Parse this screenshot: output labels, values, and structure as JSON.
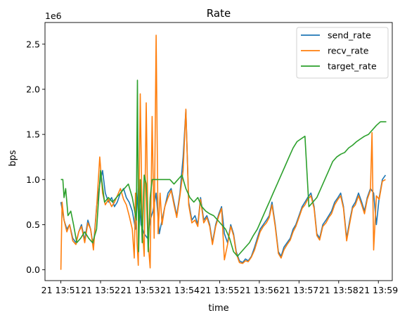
{
  "chart_data": {
    "type": "line",
    "title": "Rate",
    "xlabel": "time",
    "ylabel": "bps",
    "y_offset_text": "1e6",
    "x_range": [
      -0.4,
      8.35
    ],
    "ylim": [
      -0.12,
      2.74
    ],
    "y_ticks": [
      0.0,
      0.5,
      1.0,
      1.5,
      2.0,
      2.5
    ],
    "y_tick_labels": [
      "0.0",
      "0.5",
      "1.0",
      "1.5",
      "2.0",
      "2.5"
    ],
    "x_ticks": [
      0,
      1,
      2,
      3,
      4,
      5,
      6,
      7,
      8
    ],
    "x_tick_labels": [
      "21 13:51",
      "21 13:52",
      "21 13:53",
      "21 13:54",
      "21 13:55",
      "21 13:56",
      "21 13:57",
      "21 13:58",
      "21 13:59"
    ],
    "legend_position": "top-right",
    "grid": false,
    "series": [
      {
        "name": "send_rate",
        "color": "#1f77b4",
        "x": [
          0.0,
          0.08,
          0.15,
          0.22,
          0.3,
          0.38,
          0.45,
          0.52,
          0.6,
          0.68,
          0.75,
          0.82,
          0.9,
          0.98,
          1.05,
          1.12,
          1.2,
          1.28,
          1.35,
          1.42,
          1.5,
          1.58,
          1.65,
          1.72,
          1.8,
          1.88,
          1.95,
          2.02,
          2.1,
          2.18,
          2.25,
          2.32,
          2.4,
          2.48,
          2.55,
          2.62,
          2.7,
          2.78,
          2.85,
          2.92,
          3.0,
          3.08,
          3.15,
          3.22,
          3.3,
          3.38,
          3.45,
          3.52,
          3.6,
          3.68,
          3.75,
          3.82,
          3.9,
          3.98,
          4.05,
          4.12,
          4.2,
          4.28,
          4.35,
          4.42,
          4.5,
          4.58,
          4.65,
          4.72,
          4.8,
          4.88,
          4.95,
          5.02,
          5.1,
          5.18,
          5.25,
          5.32,
          5.4,
          5.48,
          5.55,
          5.62,
          5.7,
          5.78,
          5.85,
          5.92,
          6.0,
          6.08,
          6.15,
          6.22,
          6.3,
          6.38,
          6.45,
          6.52,
          6.6,
          6.68,
          6.75,
          6.82,
          6.9,
          6.98,
          7.05,
          7.12,
          7.2,
          7.28,
          7.35,
          7.42,
          7.5,
          7.58,
          7.65,
          7.72,
          7.8,
          7.88,
          7.95,
          8.02,
          8.1,
          8.18
        ],
        "values": [
          0.75,
          0.55,
          0.45,
          0.5,
          0.35,
          0.3,
          0.42,
          0.5,
          0.33,
          0.55,
          0.45,
          0.25,
          0.7,
          0.95,
          1.1,
          0.85,
          0.75,
          0.8,
          0.7,
          0.75,
          0.85,
          0.9,
          0.8,
          0.75,
          0.65,
          0.45,
          0.9,
          0.5,
          0.4,
          0.35,
          0.55,
          0.65,
          0.85,
          0.4,
          0.55,
          0.7,
          0.85,
          0.9,
          0.75,
          0.6,
          0.85,
          1.25,
          1.77,
          0.75,
          0.55,
          0.6,
          0.5,
          0.8,
          0.55,
          0.6,
          0.5,
          0.3,
          0.5,
          0.62,
          0.7,
          0.4,
          0.3,
          0.5,
          0.4,
          0.2,
          0.1,
          0.08,
          0.12,
          0.1,
          0.15,
          0.25,
          0.35,
          0.45,
          0.5,
          0.55,
          0.6,
          0.75,
          0.5,
          0.2,
          0.15,
          0.25,
          0.3,
          0.35,
          0.45,
          0.5,
          0.6,
          0.7,
          0.75,
          0.8,
          0.85,
          0.7,
          0.4,
          0.35,
          0.5,
          0.55,
          0.6,
          0.65,
          0.75,
          0.8,
          0.85,
          0.7,
          0.35,
          0.55,
          0.7,
          0.75,
          0.85,
          0.75,
          0.65,
          0.8,
          0.9,
          0.85,
          0.5,
          0.8,
          1.0,
          1.05
        ]
      },
      {
        "name": "recv_rate",
        "color": "#ff7f0e",
        "x": [
          0.0,
          0.03,
          0.08,
          0.15,
          0.22,
          0.3,
          0.38,
          0.45,
          0.52,
          0.6,
          0.68,
          0.75,
          0.82,
          0.9,
          0.98,
          1.05,
          1.12,
          1.2,
          1.28,
          1.35,
          1.42,
          1.5,
          1.58,
          1.65,
          1.72,
          1.8,
          1.85,
          1.88,
          1.92,
          1.95,
          2.0,
          2.05,
          2.1,
          2.15,
          2.2,
          2.25,
          2.3,
          2.35,
          2.4,
          2.45,
          2.5,
          2.55,
          2.62,
          2.7,
          2.78,
          2.85,
          2.92,
          3.0,
          3.08,
          3.15,
          3.22,
          3.3,
          3.38,
          3.45,
          3.52,
          3.6,
          3.68,
          3.75,
          3.82,
          3.9,
          3.98,
          4.05,
          4.12,
          4.2,
          4.28,
          4.35,
          4.42,
          4.5,
          4.58,
          4.65,
          4.72,
          4.8,
          4.88,
          4.95,
          5.02,
          5.1,
          5.18,
          5.25,
          5.32,
          5.4,
          5.48,
          5.55,
          5.62,
          5.7,
          5.78,
          5.85,
          5.92,
          6.0,
          6.08,
          6.15,
          6.22,
          6.3,
          6.38,
          6.45,
          6.52,
          6.6,
          6.68,
          6.75,
          6.82,
          6.9,
          6.98,
          7.05,
          7.12,
          7.2,
          7.28,
          7.35,
          7.42,
          7.5,
          7.58,
          7.65,
          7.72,
          7.8,
          7.84,
          7.88,
          7.95,
          8.02,
          8.1,
          8.18
        ],
        "values": [
          0.0,
          0.75,
          0.55,
          0.42,
          0.5,
          0.32,
          0.28,
          0.42,
          0.48,
          0.3,
          0.52,
          0.45,
          0.22,
          0.68,
          1.25,
          0.85,
          0.72,
          0.78,
          0.7,
          0.75,
          0.82,
          0.9,
          0.78,
          0.72,
          0.6,
          0.45,
          0.13,
          0.85,
          0.3,
          0.05,
          1.95,
          0.5,
          0.15,
          1.85,
          0.3,
          0.02,
          1.7,
          0.35,
          2.6,
          0.4,
          0.85,
          0.5,
          0.7,
          0.8,
          0.88,
          0.72,
          0.58,
          0.82,
          1.1,
          1.78,
          0.72,
          0.52,
          0.55,
          0.48,
          0.78,
          0.52,
          0.58,
          0.48,
          0.28,
          0.48,
          0.6,
          0.68,
          0.11,
          0.28,
          0.48,
          0.38,
          0.18,
          0.08,
          0.07,
          0.1,
          0.09,
          0.14,
          0.22,
          0.32,
          0.42,
          0.48,
          0.52,
          0.58,
          0.72,
          0.48,
          0.18,
          0.13,
          0.22,
          0.28,
          0.33,
          0.42,
          0.48,
          0.58,
          0.68,
          0.72,
          0.78,
          0.82,
          0.68,
          0.38,
          0.33,
          0.48,
          0.52,
          0.58,
          0.62,
          0.72,
          0.78,
          0.82,
          0.68,
          0.32,
          0.52,
          0.68,
          0.72,
          0.82,
          0.72,
          0.62,
          0.78,
          0.88,
          1.52,
          0.22,
          0.82,
          0.78,
          0.98,
          1.0
        ]
      },
      {
        "name": "target_rate",
        "color": "#2ca02c",
        "x": [
          0.0,
          0.05,
          0.08,
          0.12,
          0.18,
          0.25,
          0.32,
          0.4,
          0.5,
          0.6,
          0.7,
          0.8,
          0.9,
          1.0,
          1.1,
          1.2,
          1.3,
          1.4,
          1.5,
          1.6,
          1.7,
          1.8,
          1.9,
          1.93,
          1.96,
          2.0,
          2.05,
          2.1,
          2.15,
          2.2,
          2.25,
          2.3,
          2.35,
          2.45,
          2.55,
          2.65,
          2.75,
          2.85,
          2.95,
          3.05,
          3.15,
          3.25,
          3.35,
          3.45,
          3.55,
          3.65,
          3.75,
          3.85,
          3.95,
          4.05,
          4.15,
          4.25,
          4.35,
          4.45,
          4.55,
          4.65,
          4.75,
          4.85,
          4.95,
          5.05,
          5.15,
          5.25,
          5.35,
          5.45,
          5.55,
          5.65,
          5.75,
          5.85,
          5.95,
          6.05,
          6.15,
          6.25,
          6.35,
          6.45,
          6.55,
          6.65,
          6.75,
          6.85,
          6.95,
          7.05,
          7.15,
          7.25,
          7.35,
          7.45,
          7.55,
          7.65,
          7.75,
          7.85,
          7.95,
          8.05,
          8.15,
          8.2
        ],
        "values": [
          1.0,
          1.0,
          0.8,
          0.9,
          0.6,
          0.65,
          0.5,
          0.3,
          0.35,
          0.42,
          0.35,
          0.3,
          0.45,
          1.1,
          0.75,
          0.8,
          0.75,
          0.8,
          0.85,
          0.9,
          0.95,
          0.8,
          0.55,
          2.1,
          0.2,
          1.0,
          0.3,
          1.05,
          0.95,
          0.2,
          0.8,
          1.0,
          1.0,
          1.0,
          1.0,
          1.0,
          1.0,
          0.95,
          1.0,
          1.05,
          0.9,
          0.8,
          0.75,
          0.8,
          0.7,
          0.65,
          0.62,
          0.6,
          0.55,
          0.5,
          0.45,
          0.35,
          0.2,
          0.15,
          0.2,
          0.25,
          0.3,
          0.38,
          0.45,
          0.55,
          0.65,
          0.75,
          0.85,
          0.95,
          1.05,
          1.15,
          1.25,
          1.35,
          1.42,
          1.45,
          1.48,
          0.7,
          0.75,
          0.8,
          0.9,
          1.0,
          1.1,
          1.2,
          1.25,
          1.28,
          1.3,
          1.35,
          1.38,
          1.42,
          1.45,
          1.48,
          1.5,
          1.55,
          1.6,
          1.64,
          1.64,
          1.64
        ]
      }
    ]
  }
}
